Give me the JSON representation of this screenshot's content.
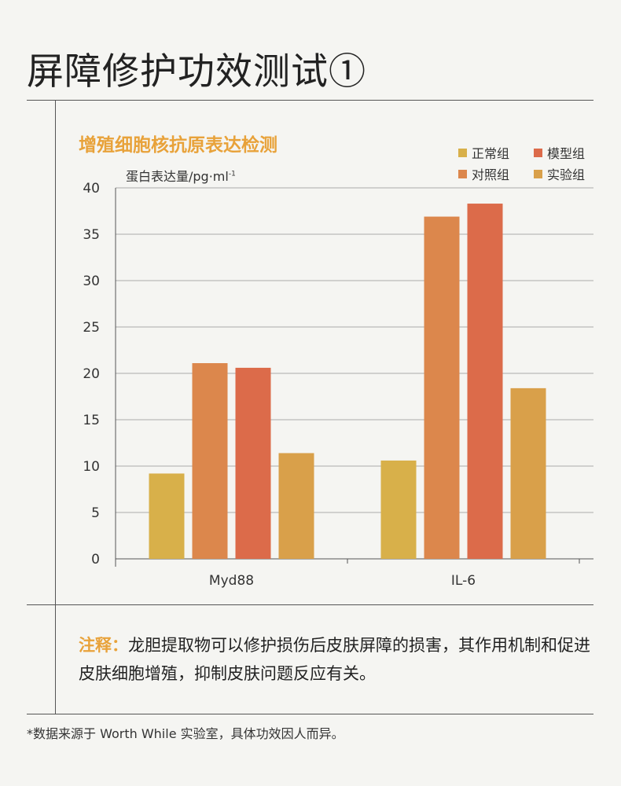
{
  "header": {
    "title": "屏障修护功效测试",
    "title_badge": "①"
  },
  "colors": {
    "accent": "#e8a23a",
    "normal": "#d8b04a",
    "model": "#dc6b4a",
    "control": "#dc874c",
    "experiment": "#d9a04a"
  },
  "chart_data": {
    "type": "bar",
    "title": "增殖细胞核抗原表达检测",
    "ylabel": "蛋白表达量/pg·ml",
    "ylabel_sup": "-1",
    "xlabel": "",
    "ylim": [
      0,
      40
    ],
    "yticks": [
      0,
      5,
      10,
      15,
      20,
      25,
      30,
      35,
      40
    ],
    "categories": [
      "Myd88",
      "IL-6"
    ],
    "grid": true,
    "legend_position": "top-right",
    "series": [
      {
        "name": "正常组",
        "color": "#d8b04a",
        "values": [
          9.2,
          10.6
        ]
      },
      {
        "name": "对照组",
        "color": "#dc874c",
        "values": [
          21.1,
          36.9
        ]
      },
      {
        "name": "模型组",
        "color": "#dc6b4a",
        "values": [
          20.6,
          38.3
        ]
      },
      {
        "name": "实验组",
        "color": "#d9a04a",
        "values": [
          11.4,
          18.4
        ]
      }
    ],
    "legend": [
      {
        "name": "正常组",
        "color": "#d8b04a"
      },
      {
        "name": "模型组",
        "color": "#dc6b4a"
      },
      {
        "name": "对照组",
        "color": "#dc874c"
      },
      {
        "name": "实验组",
        "color": "#d9a04a"
      }
    ]
  },
  "note": {
    "label": "注释：",
    "text": "龙胆提取物可以修护损伤后皮肤屏障的损害，其作用机制和促进皮肤细胞增殖，抑制皮肤问题反应有关。"
  },
  "footnote": "*数据来源于 Worth While 实验室，具体功效因人而异。"
}
